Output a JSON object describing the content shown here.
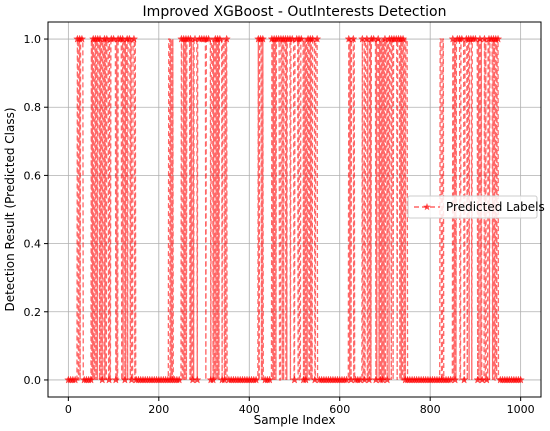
{
  "chart_data": {
    "type": "line",
    "title": "Improved XGBoost - OutInterests Detection",
    "xlabel": "Sample Index",
    "ylabel": "Detection Result (Predicted Class)",
    "xlim": [
      -45,
      1045
    ],
    "ylim": [
      -0.05,
      1.05
    ],
    "xticks": [
      0,
      200,
      400,
      600,
      800,
      1000
    ],
    "yticks": [
      0.0,
      0.2,
      0.4,
      0.6,
      0.8,
      1.0
    ],
    "ytick_labels": [
      "0.0",
      "0.2",
      "0.4",
      "0.6",
      "0.8",
      "1.0"
    ],
    "grid": true,
    "legend_position": "center-right",
    "series": [
      {
        "name": "Predicted Labels",
        "color": "#ff0000",
        "line_style": "dashed",
        "marker": "star",
        "segments": [
          {
            "x_start": 0,
            "x_end": 19,
            "value": 0
          },
          {
            "x_start": 20,
            "x_end": 32,
            "value": 1
          },
          {
            "x_start": 33,
            "x_end": 49,
            "value": 0
          },
          {
            "x_start": 50,
            "x_end": 150,
            "value": 1
          },
          {
            "x_start": 151,
            "x_end": 219,
            "value": 0
          },
          {
            "x_start": 220,
            "x_end": 232,
            "value": 1
          },
          {
            "x_start": 233,
            "x_end": 249,
            "value": 0
          },
          {
            "x_start": 250,
            "x_end": 350,
            "value": 1
          },
          {
            "x_start": 351,
            "x_end": 419,
            "value": 0
          },
          {
            "x_start": 420,
            "x_end": 432,
            "value": 1
          },
          {
            "x_start": 433,
            "x_end": 449,
            "value": 0
          },
          {
            "x_start": 450,
            "x_end": 550,
            "value": 1
          },
          {
            "x_start": 551,
            "x_end": 619,
            "value": 0
          },
          {
            "x_start": 620,
            "x_end": 632,
            "value": 1
          },
          {
            "x_start": 633,
            "x_end": 649,
            "value": 0
          },
          {
            "x_start": 650,
            "x_end": 750,
            "value": 1
          },
          {
            "x_start": 751,
            "x_end": 819,
            "value": 0
          },
          {
            "x_start": 820,
            "x_end": 832,
            "value": 1
          },
          {
            "x_start": 833,
            "x_end": 849,
            "value": 0
          },
          {
            "x_start": 850,
            "x_end": 950,
            "value": 1
          },
          {
            "x_start": 951,
            "x_end": 1000,
            "value": 0
          }
        ],
        "sample_step": 5
      }
    ]
  }
}
